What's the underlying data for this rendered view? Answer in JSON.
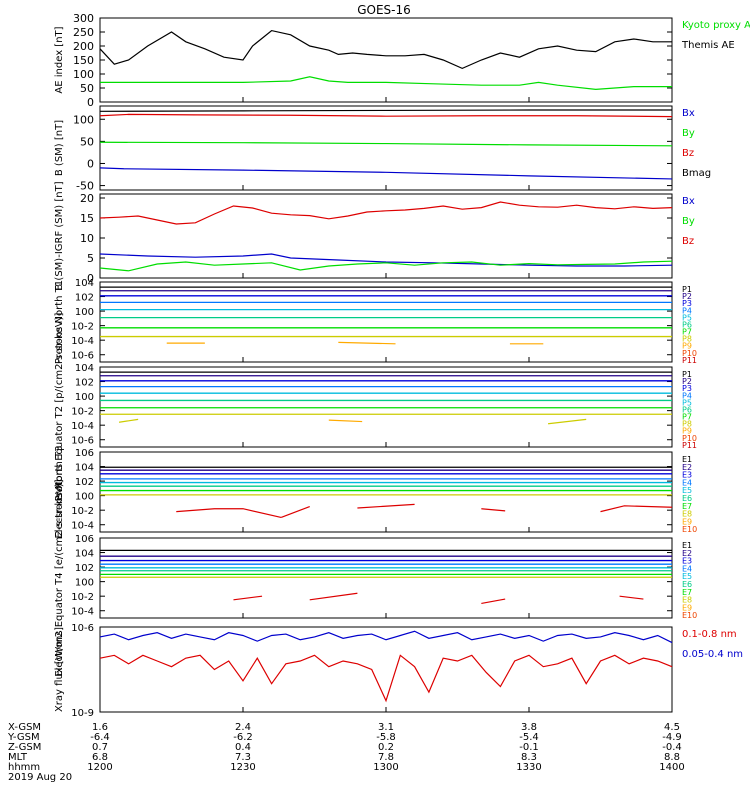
{
  "title": "GOES-16",
  "time_axis": {
    "start_minutes": 0,
    "end_minutes": 120,
    "row_labels": [
      "X-GSM",
      "Y-GSM",
      "Z-GSM",
      "MLT",
      "hhmm"
    ],
    "date": "2019 Aug 20",
    "ticks": [
      {
        "t": 0,
        "values": [
          "1.6",
          "-6.4",
          "0.7",
          "6.8",
          "1200"
        ]
      },
      {
        "t": 30,
        "values": [
          "2.4",
          "-6.2",
          "0.4",
          "7.3",
          "1230"
        ]
      },
      {
        "t": 60,
        "values": [
          "3.1",
          "-5.8",
          "0.2",
          "7.8",
          "1300"
        ]
      },
      {
        "t": 90,
        "values": [
          "3.8",
          "-5.4",
          "-0.1",
          "8.3",
          "1330"
        ]
      },
      {
        "t": 120,
        "values": [
          "4.5",
          "-4.9",
          "-0.4",
          "8.8",
          "1400"
        ]
      }
    ]
  },
  "colors": {
    "black": "#000000",
    "green": "#00dd00",
    "blue": "#0000cc",
    "red": "#dd0000",
    "p_channels": [
      "#000000",
      "#220088",
      "#0000dd",
      "#0077ff",
      "#00bbdd",
      "#00cc88",
      "#00dd00",
      "#cccc00",
      "#ffaa00",
      "#ee4400",
      "#cc0000"
    ]
  },
  "chart_data": [
    {
      "type": "line",
      "ylabel": "AE index [nT]",
      "yscale": "linear",
      "ylim": [
        0,
        300
      ],
      "ticks": [
        "0",
        "50",
        "100",
        "150",
        "200",
        "250",
        "300"
      ],
      "legend": [
        {
          "label": "Kyoto proxy AE",
          "color": "#00dd00"
        },
        {
          "label": "Themis AE",
          "color": "#000000"
        }
      ],
      "series": [
        {
          "color": "#000000",
          "x": [
            0,
            3,
            6,
            10,
            15,
            18,
            22,
            26,
            30,
            32,
            36,
            40,
            44,
            48,
            50,
            53,
            56,
            60,
            64,
            68,
            72,
            76,
            80,
            84,
            88,
            92,
            96,
            100,
            104,
            108,
            112,
            116,
            120
          ],
          "values": [
            190,
            135,
            150,
            200,
            250,
            215,
            190,
            160,
            150,
            200,
            255,
            240,
            200,
            185,
            170,
            175,
            170,
            165,
            165,
            170,
            150,
            120,
            150,
            175,
            160,
            190,
            200,
            185,
            180,
            215,
            225,
            215,
            215
          ]
        },
        {
          "color": "#00dd00",
          "x": [
            0,
            10,
            20,
            30,
            40,
            44,
            48,
            52,
            60,
            70,
            80,
            88,
            92,
            96,
            104,
            112,
            120
          ],
          "values": [
            70,
            70,
            70,
            70,
            75,
            90,
            75,
            70,
            70,
            65,
            60,
            60,
            70,
            60,
            45,
            55,
            55
          ]
        }
      ]
    },
    {
      "type": "line",
      "ylabel": "B (SM) [nT]",
      "yscale": "linear",
      "ylim": [
        -60,
        130
      ],
      "ticks": [
        "-50",
        "0",
        "50",
        "100"
      ],
      "legend": [
        {
          "label": "Bx",
          "color": "#0000cc"
        },
        {
          "label": "By",
          "color": "#00dd00"
        },
        {
          "label": "Bz",
          "color": "#dd0000"
        },
        {
          "label": "Bmag",
          "color": "#000000"
        }
      ],
      "series": [
        {
          "color": "#000000",
          "x": [
            0,
            30,
            60,
            90,
            120
          ],
          "values": [
            118,
            119,
            120,
            121,
            121
          ]
        },
        {
          "color": "#dd0000",
          "x": [
            0,
            6,
            20,
            40,
            60,
            80,
            100,
            120
          ],
          "values": [
            108,
            111,
            110,
            109,
            107,
            108,
            108,
            106
          ]
        },
        {
          "color": "#00dd00",
          "x": [
            0,
            30,
            60,
            90,
            120
          ],
          "values": [
            48,
            47,
            45,
            42,
            40
          ]
        },
        {
          "color": "#0000cc",
          "x": [
            0,
            5,
            30,
            60,
            90,
            120
          ],
          "values": [
            -10,
            -12,
            -15,
            -20,
            -28,
            -35
          ]
        }
      ]
    },
    {
      "type": "line",
      "ylabel": "B (SM)-IGRF (SM) [nT]",
      "yscale": "linear",
      "ylim": [
        0,
        21
      ],
      "ticks": [
        "0",
        "5",
        "10",
        "15",
        "20"
      ],
      "legend": [
        {
          "label": "Bx",
          "color": "#0000cc"
        },
        {
          "label": "By",
          "color": "#00dd00"
        },
        {
          "label": "Bz",
          "color": "#dd0000"
        }
      ],
      "series": [
        {
          "color": "#dd0000",
          "x": [
            0,
            4,
            8,
            12,
            16,
            20,
            24,
            28,
            32,
            36,
            40,
            44,
            48,
            52,
            56,
            60,
            64,
            68,
            72,
            76,
            80,
            84,
            88,
            92,
            96,
            100,
            104,
            108,
            112,
            116,
            120
          ],
          "values": [
            15,
            15.2,
            15.5,
            14.5,
            13.5,
            13.8,
            16,
            18,
            17.5,
            16.2,
            15.8,
            15.6,
            14.8,
            15.5,
            16.5,
            16.8,
            17,
            17.4,
            18,
            17.2,
            17.6,
            19,
            18.2,
            17.8,
            17.7,
            18.2,
            17.6,
            17.3,
            17.8,
            17.4,
            17.6
          ]
        },
        {
          "color": "#0000cc",
          "x": [
            0,
            10,
            20,
            30,
            36,
            40,
            50,
            60,
            70,
            80,
            90,
            100,
            110,
            120
          ],
          "values": [
            6,
            5.5,
            5.2,
            5.5,
            6,
            5,
            4.5,
            4,
            3.8,
            3.5,
            3.2,
            3,
            3,
            3.2
          ]
        },
        {
          "color": "#00dd00",
          "x": [
            0,
            6,
            12,
            18,
            24,
            30,
            36,
            42,
            48,
            54,
            60,
            66,
            72,
            78,
            84,
            90,
            96,
            102,
            108,
            114,
            120
          ],
          "values": [
            2.5,
            1.8,
            3.5,
            4,
            3.2,
            3.5,
            3.8,
            2,
            3,
            3.5,
            3.8,
            3.2,
            3.8,
            4,
            3.2,
            3.6,
            3.3,
            3.4,
            3.5,
            4,
            4.2
          ]
        }
      ]
    },
    {
      "type": "line",
      "ylabel": "Protons North T1",
      "yscale": "log",
      "ylim": [
        -7,
        4
      ],
      "ticks": [
        "10-6",
        "10-4",
        "10-2",
        "100",
        "102",
        "104"
      ],
      "legend": [
        "P1",
        "P2",
        "P3",
        "P4",
        "P5",
        "P6",
        "P7",
        "P8",
        "P9",
        "P10",
        "P11"
      ],
      "series_levels": [
        3.3,
        2.8,
        2.1,
        1.2,
        0.2,
        -0.9,
        -2.3,
        -3.5
      ],
      "fragments": [
        {
          "color": "#ffaa00",
          "x": [
            14,
            22
          ],
          "values": [
            -4.4,
            -4.4
          ]
        },
        {
          "color": "#ffaa00",
          "x": [
            50,
            62
          ],
          "values": [
            -4.3,
            -4.5
          ]
        },
        {
          "color": "#ffaa00",
          "x": [
            86,
            93
          ],
          "values": [
            -4.5,
            -4.5
          ]
        }
      ]
    },
    {
      "type": "line",
      "ylabel": "Protons Equator T2 [p/(cm2-s-sr-keV)]",
      "yscale": "log",
      "ylim": [
        -7,
        4
      ],
      "ticks": [
        "10-6",
        "10-4",
        "10-2",
        "100",
        "102",
        "104"
      ],
      "legend": [
        "P1",
        "P2",
        "P3",
        "P4",
        "P5",
        "P6",
        "P7",
        "P8",
        "P9",
        "P10",
        "P11"
      ],
      "series_levels": [
        3.3,
        2.8,
        2.1,
        1.3,
        0.4,
        -0.6,
        -1.6,
        -2.5
      ],
      "fragments": [
        {
          "color": "#cccc00",
          "x": [
            4,
            8
          ],
          "values": [
            -3.6,
            -3.2
          ]
        },
        {
          "color": "#ffaa00",
          "x": [
            48,
            55
          ],
          "values": [
            -3.3,
            -3.5
          ]
        },
        {
          "color": "#cccc00",
          "x": [
            94,
            102
          ],
          "values": [
            -3.8,
            -3.2
          ]
        }
      ]
    },
    {
      "type": "line",
      "ylabel": "Electrons North T3",
      "yscale": "log",
      "ylim": [
        -5,
        6
      ],
      "ticks": [
        "10-4",
        "10-2",
        "100",
        "102",
        "104",
        "106"
      ],
      "legend": [
        "E1",
        "E2",
        "E3",
        "E4",
        "E5",
        "E6",
        "E7",
        "E8",
        "E9",
        "E10"
      ],
      "series_levels": [
        3.9,
        3.5,
        3.0,
        2.3,
        1.8,
        1.3,
        0.7,
        0.1
      ],
      "fragments": [
        {
          "color": "#dd0000",
          "x": [
            16,
            24,
            30,
            38
          ],
          "values": [
            -2.2,
            -1.8,
            -1.8,
            -3.0
          ]
        },
        {
          "color": "#dd0000",
          "x": [
            38,
            44
          ],
          "values": [
            -3.0,
            -1.5
          ]
        },
        {
          "color": "#dd0000",
          "x": [
            54,
            66
          ],
          "values": [
            -1.7,
            -1.2
          ]
        },
        {
          "color": "#dd0000",
          "x": [
            80,
            85
          ],
          "values": [
            -1.8,
            -2.1
          ]
        },
        {
          "color": "#dd0000",
          "x": [
            105,
            110,
            120
          ],
          "values": [
            -2.2,
            -1.4,
            -1.6
          ]
        }
      ]
    },
    {
      "type": "line",
      "ylabel": "Electrons Equator T4 [e/(cm2-s-sr-keV)]",
      "yscale": "log",
      "ylim": [
        -5,
        6
      ],
      "ticks": [
        "10-4",
        "10-2",
        "100",
        "102",
        "104",
        "106"
      ],
      "legend": [
        "E1",
        "E2",
        "E3",
        "E4",
        "E5",
        "E6",
        "E7",
        "E8",
        "E9",
        "E10"
      ],
      "series_levels": [
        4.3,
        3.5,
        2.9,
        2.4,
        1.9,
        1.5,
        1.0,
        0.6
      ],
      "fragments": [
        {
          "color": "#dd0000",
          "x": [
            28,
            34
          ],
          "values": [
            -2.5,
            -2.0
          ]
        },
        {
          "color": "#dd0000",
          "x": [
            44,
            54
          ],
          "values": [
            -2.5,
            -1.6
          ]
        },
        {
          "color": "#dd0000",
          "x": [
            80,
            85
          ],
          "values": [
            -3.0,
            -2.4
          ]
        },
        {
          "color": "#dd0000",
          "x": [
            109,
            114
          ],
          "values": [
            -2.0,
            -2.4
          ]
        }
      ]
    },
    {
      "type": "line",
      "ylabel": "Xray flux [W/m2]",
      "yscale": "log",
      "ylim": [
        -9,
        -6
      ],
      "ticks": [
        "10-9",
        "10-6"
      ],
      "legend": [
        {
          "label": "0.1-0.8 nm",
          "color": "#dd0000"
        },
        {
          "label": "0.05-0.4 nm",
          "color": "#0000cc"
        }
      ],
      "series": [
        {
          "color": "#0000cc",
          "x": [
            0,
            3,
            6,
            9,
            12,
            15,
            18,
            21,
            24,
            27,
            30,
            33,
            36,
            39,
            42,
            45,
            48,
            51,
            54,
            57,
            60,
            63,
            66,
            69,
            72,
            75,
            78,
            81,
            84,
            87,
            90,
            93,
            96,
            99,
            102,
            105,
            108,
            111,
            114,
            117,
            120
          ],
          "values": [
            -6.35,
            -6.25,
            -6.45,
            -6.3,
            -6.2,
            -6.4,
            -6.25,
            -6.35,
            -6.45,
            -6.2,
            -6.3,
            -6.5,
            -6.3,
            -6.25,
            -6.45,
            -6.35,
            -6.2,
            -6.4,
            -6.3,
            -6.25,
            -6.45,
            -6.3,
            -6.15,
            -6.4,
            -6.3,
            -6.2,
            -6.45,
            -6.35,
            -6.25,
            -6.4,
            -6.3,
            -6.5,
            -6.3,
            -6.25,
            -6.4,
            -6.35,
            -6.2,
            -6.3,
            -6.45,
            -6.3,
            -6.55
          ]
        },
        {
          "color": "#dd0000",
          "x": [
            0,
            3,
            6,
            9,
            12,
            15,
            18,
            21,
            24,
            27,
            30,
            33,
            36,
            39,
            42,
            45,
            48,
            51,
            54,
            57,
            60,
            63,
            66,
            69,
            72,
            75,
            78,
            81,
            84,
            87,
            90,
            93,
            96,
            99,
            102,
            105,
            108,
            111,
            114,
            117,
            120
          ],
          "values": [
            -7.1,
            -7.0,
            -7.3,
            -7.0,
            -7.2,
            -7.4,
            -7.1,
            -7.0,
            -7.5,
            -7.2,
            -7.9,
            -7.1,
            -8.0,
            -7.3,
            -7.2,
            -7.0,
            -7.4,
            -7.2,
            -7.3,
            -7.5,
            -8.6,
            -7.0,
            -7.4,
            -8.3,
            -7.1,
            -7.2,
            -7.0,
            -7.6,
            -8.1,
            -7.2,
            -7.0,
            -7.4,
            -7.3,
            -7.1,
            -8.0,
            -7.2,
            -7.0,
            -7.3,
            -7.1,
            -7.2,
            -7.4
          ]
        }
      ]
    }
  ]
}
